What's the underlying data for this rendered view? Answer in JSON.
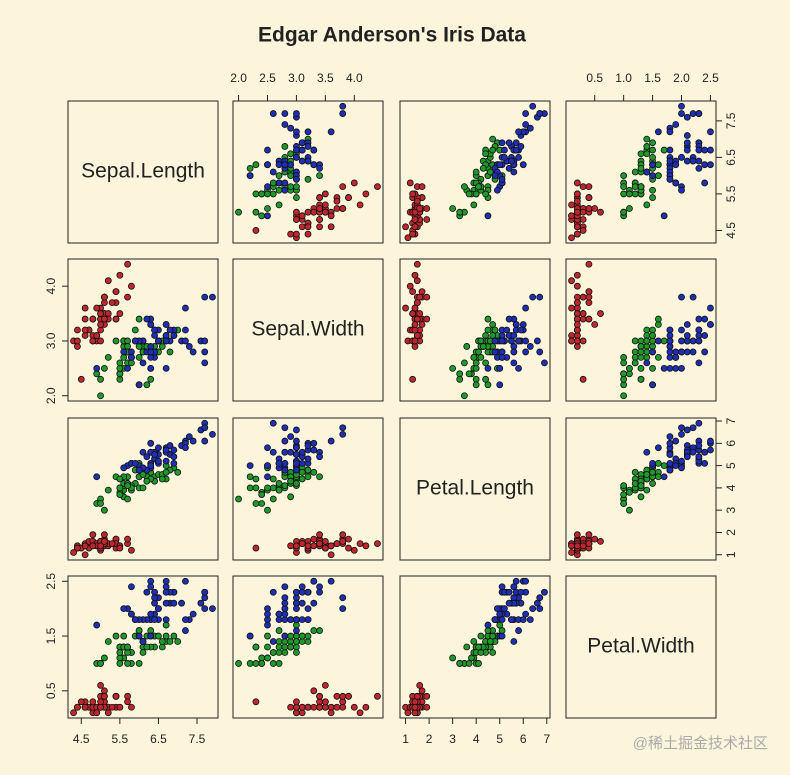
{
  "chart_data": {
    "type": "scatter-matrix",
    "title": "Edgar Anderson's Iris Data",
    "watermark": "@稀土掘金技术社区",
    "variables": [
      {
        "label": "Sepal.Length",
        "lim": [
          4.156,
          8.044
        ],
        "xticks": [
          4.5,
          5.5,
          6.5,
          7.5
        ],
        "yticks": [
          4.5,
          5.5,
          6.5,
          7.5
        ]
      },
      {
        "label": "Sepal.Width",
        "lim": [
          1.904,
          4.496
        ],
        "xticks": [
          {
            "value": 2,
            "label": "2.0"
          },
          2.5,
          {
            "value": 3,
            "label": "3.0"
          },
          3.5,
          {
            "value": 4,
            "label": "4.0"
          }
        ],
        "yticks": [
          {
            "value": 2,
            "label": "2.0"
          },
          {
            "value": 3,
            "label": "3.0"
          },
          {
            "value": 4,
            "label": "4.0"
          }
        ]
      },
      {
        "label": "Petal.Length",
        "lim": [
          0.764,
          7.136
        ],
        "xticks": [
          1,
          2,
          3,
          4,
          5,
          6,
          7
        ],
        "yticks": [
          1,
          2,
          3,
          4,
          5,
          6,
          7
        ]
      },
      {
        "label": "Petal.Width",
        "lim": [
          0.004,
          2.596
        ],
        "xticks": [
          0.5,
          {
            "value": 1,
            "label": "1.0"
          },
          1.5,
          {
            "value": 2,
            "label": "2.0"
          },
          2.5
        ],
        "yticks": [
          0.5,
          1.5,
          2.5
        ]
      }
    ],
    "series": [
      {
        "color": "#c0272d",
        "points": [
          [
            5.1,
            3.5,
            1.4,
            0.2
          ],
          [
            4.9,
            3.0,
            1.4,
            0.2
          ],
          [
            4.7,
            3.2,
            1.3,
            0.2
          ],
          [
            4.6,
            3.1,
            1.5,
            0.2
          ],
          [
            5.0,
            3.6,
            1.4,
            0.2
          ],
          [
            5.4,
            3.9,
            1.7,
            0.4
          ],
          [
            4.6,
            3.4,
            1.4,
            0.3
          ],
          [
            5.0,
            3.4,
            1.5,
            0.2
          ],
          [
            4.4,
            2.9,
            1.4,
            0.2
          ],
          [
            4.9,
            3.1,
            1.5,
            0.1
          ],
          [
            5.4,
            3.7,
            1.5,
            0.2
          ],
          [
            4.8,
            3.4,
            1.6,
            0.2
          ],
          [
            4.8,
            3.0,
            1.4,
            0.1
          ],
          [
            4.3,
            3.0,
            1.1,
            0.1
          ],
          [
            5.8,
            4.0,
            1.2,
            0.2
          ],
          [
            5.7,
            4.4,
            1.5,
            0.4
          ],
          [
            5.4,
            3.9,
            1.3,
            0.4
          ],
          [
            5.1,
            3.5,
            1.4,
            0.3
          ],
          [
            5.7,
            3.8,
            1.7,
            0.3
          ],
          [
            5.1,
            3.8,
            1.5,
            0.3
          ],
          [
            5.4,
            3.4,
            1.7,
            0.2
          ],
          [
            5.1,
            3.7,
            1.5,
            0.4
          ],
          [
            4.6,
            3.6,
            1.0,
            0.2
          ],
          [
            5.1,
            3.3,
            1.7,
            0.5
          ],
          [
            4.8,
            3.4,
            1.9,
            0.2
          ],
          [
            5.0,
            3.0,
            1.6,
            0.2
          ],
          [
            5.0,
            3.4,
            1.6,
            0.4
          ],
          [
            5.2,
            3.5,
            1.5,
            0.2
          ],
          [
            5.2,
            3.4,
            1.4,
            0.2
          ],
          [
            4.7,
            3.2,
            1.6,
            0.2
          ],
          [
            4.8,
            3.1,
            1.6,
            0.2
          ],
          [
            5.4,
            3.4,
            1.5,
            0.4
          ],
          [
            5.2,
            4.1,
            1.5,
            0.1
          ],
          [
            5.5,
            4.2,
            1.4,
            0.2
          ],
          [
            4.9,
            3.1,
            1.5,
            0.2
          ],
          [
            5.0,
            3.2,
            1.2,
            0.2
          ],
          [
            5.5,
            3.5,
            1.3,
            0.2
          ],
          [
            4.9,
            3.6,
            1.4,
            0.1
          ],
          [
            4.4,
            3.0,
            1.3,
            0.2
          ],
          [
            5.1,
            3.4,
            1.5,
            0.2
          ],
          [
            5.0,
            3.5,
            1.3,
            0.3
          ],
          [
            4.5,
            2.3,
            1.3,
            0.3
          ],
          [
            4.4,
            3.2,
            1.3,
            0.2
          ],
          [
            5.0,
            3.5,
            1.6,
            0.6
          ],
          [
            5.1,
            3.8,
            1.9,
            0.4
          ],
          [
            4.8,
            3.0,
            1.4,
            0.3
          ],
          [
            5.1,
            3.8,
            1.6,
            0.2
          ],
          [
            4.6,
            3.2,
            1.4,
            0.2
          ],
          [
            5.3,
            3.7,
            1.5,
            0.2
          ],
          [
            5.0,
            3.3,
            1.4,
            0.2
          ]
        ]
      },
      {
        "color": "#1f9a2a",
        "points": [
          [
            7.0,
            3.2,
            4.7,
            1.4
          ],
          [
            6.4,
            3.2,
            4.5,
            1.5
          ],
          [
            6.9,
            3.1,
            4.9,
            1.5
          ],
          [
            5.5,
            2.3,
            4.0,
            1.3
          ],
          [
            6.5,
            2.8,
            4.6,
            1.5
          ],
          [
            5.7,
            2.8,
            4.5,
            1.3
          ],
          [
            6.3,
            3.3,
            4.7,
            1.6
          ],
          [
            4.9,
            2.4,
            3.3,
            1.0
          ],
          [
            6.6,
            2.9,
            4.6,
            1.3
          ],
          [
            5.2,
            2.7,
            3.9,
            1.4
          ],
          [
            5.0,
            2.0,
            3.5,
            1.0
          ],
          [
            5.9,
            3.0,
            4.2,
            1.5
          ],
          [
            6.0,
            2.2,
            4.0,
            1.0
          ],
          [
            6.1,
            2.9,
            4.7,
            1.4
          ],
          [
            5.6,
            2.9,
            3.6,
            1.3
          ],
          [
            6.7,
            3.1,
            4.4,
            1.4
          ],
          [
            5.6,
            3.0,
            4.5,
            1.5
          ],
          [
            5.8,
            2.7,
            4.1,
            1.0
          ],
          [
            6.2,
            2.2,
            4.5,
            1.5
          ],
          [
            5.6,
            2.5,
            3.9,
            1.1
          ],
          [
            5.9,
            3.2,
            4.8,
            1.8
          ],
          [
            6.1,
            2.8,
            4.0,
            1.3
          ],
          [
            6.3,
            2.5,
            4.9,
            1.5
          ],
          [
            6.1,
            2.8,
            4.7,
            1.2
          ],
          [
            6.4,
            2.9,
            4.3,
            1.3
          ],
          [
            6.6,
            3.0,
            4.4,
            1.4
          ],
          [
            6.8,
            2.8,
            4.8,
            1.4
          ],
          [
            6.7,
            3.0,
            5.0,
            1.7
          ],
          [
            6.0,
            2.9,
            4.5,
            1.5
          ],
          [
            5.7,
            2.6,
            3.5,
            1.0
          ],
          [
            5.5,
            2.4,
            3.8,
            1.1
          ],
          [
            5.5,
            2.4,
            3.7,
            1.0
          ],
          [
            5.8,
            2.7,
            3.9,
            1.2
          ],
          [
            6.0,
            2.7,
            5.1,
            1.6
          ],
          [
            5.4,
            3.0,
            4.5,
            1.5
          ],
          [
            6.0,
            3.4,
            4.5,
            1.6
          ],
          [
            6.7,
            3.1,
            4.7,
            1.5
          ],
          [
            6.3,
            2.3,
            4.4,
            1.3
          ],
          [
            5.6,
            3.0,
            4.1,
            1.3
          ],
          [
            5.5,
            2.5,
            4.0,
            1.3
          ],
          [
            5.5,
            2.6,
            4.4,
            1.2
          ],
          [
            6.1,
            3.0,
            4.6,
            1.4
          ],
          [
            5.8,
            2.6,
            4.0,
            1.2
          ],
          [
            5.0,
            2.3,
            3.3,
            1.0
          ],
          [
            5.6,
            2.7,
            4.2,
            1.3
          ],
          [
            5.7,
            3.0,
            4.2,
            1.2
          ],
          [
            5.7,
            2.9,
            4.2,
            1.3
          ],
          [
            6.2,
            2.9,
            4.3,
            1.3
          ],
          [
            5.1,
            2.5,
            3.0,
            1.1
          ],
          [
            5.7,
            2.8,
            4.1,
            1.3
          ]
        ]
      },
      {
        "color": "#1f2fb4",
        "points": [
          [
            6.3,
            3.3,
            6.0,
            2.5
          ],
          [
            5.8,
            2.7,
            5.1,
            1.9
          ],
          [
            7.1,
            3.0,
            5.9,
            2.1
          ],
          [
            6.3,
            2.9,
            5.6,
            1.8
          ],
          [
            6.5,
            3.0,
            5.8,
            2.2
          ],
          [
            7.6,
            3.0,
            6.6,
            2.1
          ],
          [
            4.9,
            2.5,
            4.5,
            1.7
          ],
          [
            7.3,
            2.9,
            6.3,
            1.8
          ],
          [
            6.7,
            2.5,
            5.8,
            1.8
          ],
          [
            7.2,
            3.6,
            6.1,
            2.5
          ],
          [
            6.5,
            3.2,
            5.1,
            2.0
          ],
          [
            6.4,
            2.7,
            5.3,
            1.9
          ],
          [
            6.8,
            3.0,
            5.5,
            2.1
          ],
          [
            5.7,
            2.5,
            5.0,
            2.0
          ],
          [
            5.8,
            2.8,
            5.1,
            2.4
          ],
          [
            6.4,
            3.2,
            5.3,
            2.3
          ],
          [
            6.5,
            3.0,
            5.5,
            1.8
          ],
          [
            7.7,
            3.8,
            6.7,
            2.2
          ],
          [
            7.7,
            2.6,
            6.9,
            2.3
          ],
          [
            6.0,
            2.2,
            5.0,
            1.5
          ],
          [
            6.9,
            3.2,
            5.7,
            2.3
          ],
          [
            5.6,
            2.8,
            4.9,
            2.0
          ],
          [
            7.7,
            2.8,
            6.7,
            2.0
          ],
          [
            6.3,
            2.7,
            4.9,
            1.8
          ],
          [
            6.7,
            3.3,
            5.7,
            2.1
          ],
          [
            7.2,
            3.2,
            6.0,
            1.8
          ],
          [
            6.2,
            2.8,
            4.8,
            1.8
          ],
          [
            6.1,
            3.0,
            4.9,
            1.8
          ],
          [
            6.4,
            2.8,
            5.6,
            2.1
          ],
          [
            7.2,
            3.0,
            5.8,
            1.6
          ],
          [
            7.4,
            2.8,
            6.1,
            1.9
          ],
          [
            7.9,
            3.8,
            6.4,
            2.0
          ],
          [
            6.4,
            2.8,
            5.6,
            2.2
          ],
          [
            6.3,
            2.8,
            5.1,
            1.5
          ],
          [
            6.1,
            2.6,
            5.6,
            1.4
          ],
          [
            7.7,
            3.0,
            6.1,
            2.3
          ],
          [
            6.3,
            3.4,
            5.6,
            2.4
          ],
          [
            6.4,
            3.1,
            5.5,
            1.8
          ],
          [
            6.0,
            3.0,
            4.8,
            1.8
          ],
          [
            6.9,
            3.1,
            5.4,
            2.1
          ],
          [
            6.7,
            3.1,
            5.6,
            2.4
          ],
          [
            6.9,
            3.1,
            5.1,
            2.3
          ],
          [
            5.8,
            2.7,
            5.1,
            1.9
          ],
          [
            6.8,
            3.2,
            5.9,
            2.3
          ],
          [
            6.7,
            3.3,
            5.7,
            2.5
          ],
          [
            6.7,
            3.0,
            5.2,
            2.3
          ],
          [
            6.3,
            2.5,
            5.0,
            1.9
          ],
          [
            6.5,
            3.0,
            5.2,
            2.0
          ],
          [
            6.2,
            3.4,
            5.4,
            2.3
          ],
          [
            5.9,
            3.0,
            5.1,
            1.8
          ]
        ]
      }
    ]
  }
}
